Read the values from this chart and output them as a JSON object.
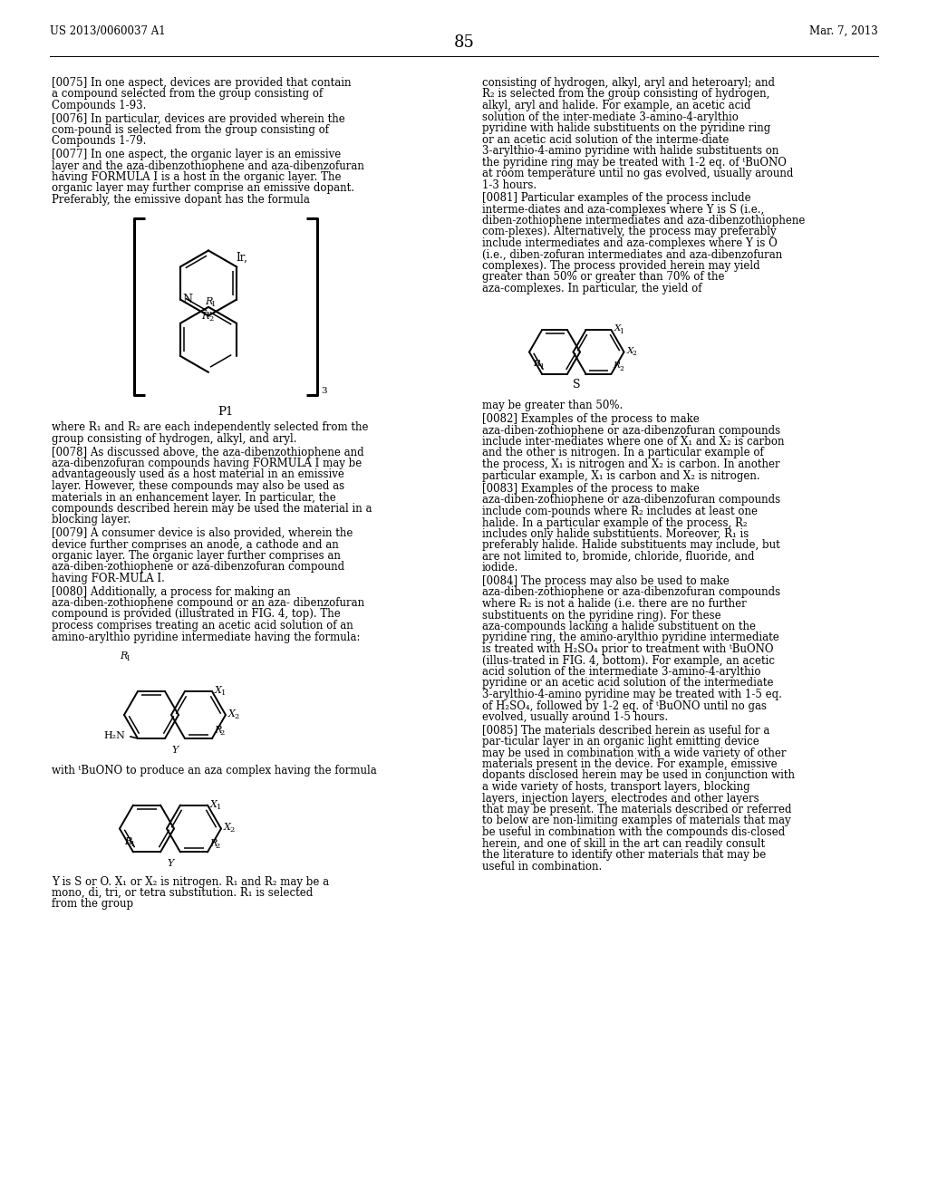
{
  "page_header_left": "US 2013/0060037 A1",
  "page_header_right": "Mar. 7, 2013",
  "page_number": "85",
  "background_color": "#ffffff",
  "left_col_paragraphs": [
    {
      "tag": "[0075]",
      "text": "In one aspect, devices are provided that contain a compound selected from the group consisting of Compounds 1-93."
    },
    {
      "tag": "[0076]",
      "text": "In particular, devices are provided wherein the com-pound is selected from the group consisting of Compounds 1-79."
    },
    {
      "tag": "[0077]",
      "text": "In one aspect, the organic layer is an emissive layer and the aza-dibenzothiophene and aza-dibenzofuran having FORMULA I is a host in the organic layer. The organic layer may further comprise an emissive dopant. Preferably, the emissive dopant has the formula"
    }
  ],
  "below_p1_paragraphs": [
    {
      "tag": "",
      "text": "where R₁ and R₂ are each independently selected from the group consisting of hydrogen, alkyl, and aryl."
    },
    {
      "tag": "[0078]",
      "text": "As discussed above, the aza-dibenzothiophene and aza-dibenzofuran compounds having FORMULA I may be advantageously used as a host material in an emissive layer. However, these compounds may also be used as materials in an enhancement layer. In particular, the compounds described herein may be used the material in a blocking layer."
    },
    {
      "tag": "[0079]",
      "text": "A consumer device is also provided, wherein the device further comprises an anode, a cathode and an organic layer. The organic layer further comprises an aza-diben-zothiophene or aza-dibenzofuran compound having FOR-MULA I."
    },
    {
      "tag": "[0080]",
      "text": "Additionally, a process for making an aza-diben-zothiophene compound or an aza- dibenzofuran compound is provided (illustrated in FIG. 4, top). The process comprises treating an acetic acid solution of an amino-arylthio pyridine intermediate having the formula:"
    }
  ],
  "with_buono_text": "with ᵗBuONO to produce an aza complex having the formula",
  "y_is_text": "Y is S or O. X₁ or X₂ is nitrogen. R₁ and R₂ may be a mono, di, tri, or tetra substitution. R₁ is selected from the group",
  "right_col_top": "consisting of hydrogen, alkyl, aryl and heteroaryl; and R₂ is selected from the group consisting of hydrogen, alkyl, aryl and halide. For example, an acetic acid solution of the inter-mediate 3-amino-4-arylthio pyridine with halide substituents on the pyridine ring or an acetic acid solution of the interme-diate 3-arylthio-4-amino pyridine with halide substituents on the pyridine ring may be treated with 1-2 eq. of ᵗBuONO at room temperature until no gas evolved, usually around 1-3 hours.",
  "right_col_paragraphs": [
    {
      "tag": "[0081]",
      "text": "Particular examples of the process include interme-diates and aza-complexes where Y is S (i.e., diben-zothiophene intermediates and aza-dibenzothiophene com-plexes). Alternatively, the process may preferably include intermediates and aza-complexes where Y is O (i.e., diben-zofuran intermediates and aza-dibenzofuran complexes). The process provided herein may yield greater than 50% or greater than 70% of the aza-complexes. In particular, the yield of"
    }
  ],
  "below_right_struct_paragraphs": [
    {
      "tag": "",
      "text": "may be greater than 50%."
    },
    {
      "tag": "[0082]",
      "text": "Examples of the process to make aza-diben-zothiophene or aza-dibenzofuran compounds include inter-mediates where one of X₁ and X₂ is carbon and the other is nitrogen. In a particular example of the process, X₁ is nitrogen and X₂ is carbon. In another particular example, X₁ is carbon and X₂ is nitrogen."
    },
    {
      "tag": "[0083]",
      "text": "Examples of the process to make aza-diben-zothiophene or aza-dibenzofuran compounds include com-pounds where R₂ includes at least one halide. In a particular example of the process, R₂ includes only halide substituents. Moreover, R₁ is preferably halide. Halide substituents may include, but are not limited to, bromide, chloride, fluoride, and iodide."
    },
    {
      "tag": "[0084]",
      "text": "The process may also be used to make aza-diben-zothiophene or aza-dibenzofuran compounds where R₂ is not a halide (i.e. there are no further substituents on the pyridine ring). For these aza-compounds lacking a halide substituent on the pyridine ring, the amino-arylthio pyridine intermediate is treated with H₂SO₄ prior to treatment with ᵗBuONO (illus-trated in FIG. 4, bottom). For example, an acetic acid solution of the intermediate 3-amino-4-arylthio pyridine or an acetic acid solution of the intermediate 3-arylthio-4-amino pyridine may be treated with 1-5 eq. of H₂SO₄, followed by 1-2 eq. of ᵗBuONO until no gas evolved, usually around 1-5 hours."
    },
    {
      "tag": "[0085]",
      "text": "The materials described herein as useful for a par-ticular layer in an organic light emitting device may be used in combination with a wide variety of other materials present in the device. For example, emissive dopants disclosed herein may be used in conjunction with a wide variety of hosts, transport layers, blocking layers, injection layers, electrodes and other layers that may be present. The materials described or referred to below are non-limiting examples of materials that may be useful in combination with the compounds dis-closed herein, and one of skill in the art can readily consult the literature to identify other materials that may be useful in combination."
    }
  ]
}
